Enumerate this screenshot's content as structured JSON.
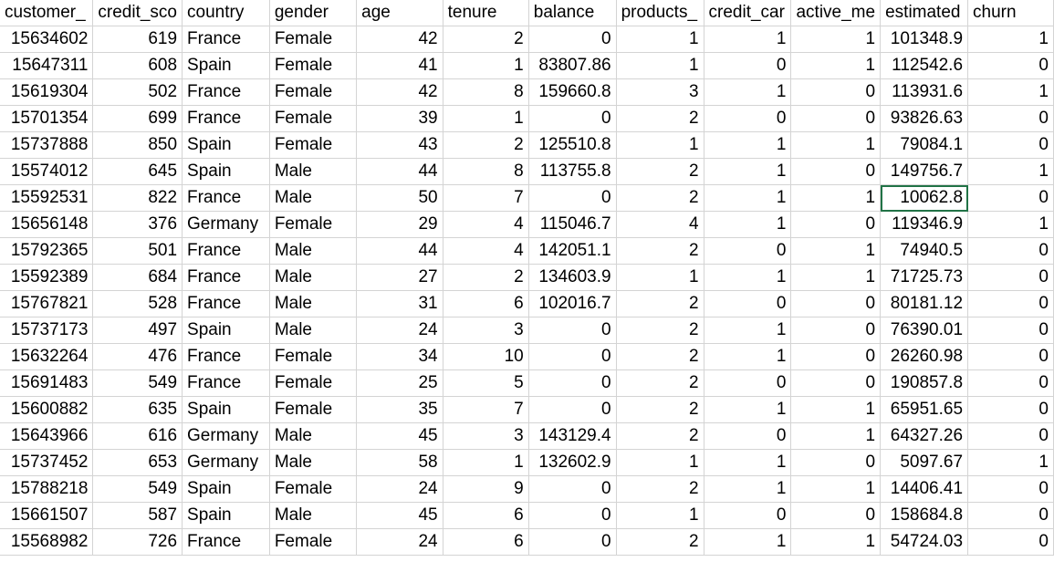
{
  "sheet": {
    "columns": [
      "customer_",
      "credit_sco",
      "country",
      "gender",
      "age",
      "tenure",
      "balance",
      "products_",
      "credit_car",
      "active_me",
      "estimated",
      "churn"
    ],
    "rows": [
      [
        "15634602",
        "619",
        "France",
        "Female",
        "42",
        "2",
        "0",
        "1",
        "1",
        "1",
        "101348.9",
        "1"
      ],
      [
        "15647311",
        "608",
        "Spain",
        "Female",
        "41",
        "1",
        "83807.86",
        "1",
        "0",
        "1",
        "112542.6",
        "0"
      ],
      [
        "15619304",
        "502",
        "France",
        "Female",
        "42",
        "8",
        "159660.8",
        "3",
        "1",
        "0",
        "113931.6",
        "1"
      ],
      [
        "15701354",
        "699",
        "France",
        "Female",
        "39",
        "1",
        "0",
        "2",
        "0",
        "0",
        "93826.63",
        "0"
      ],
      [
        "15737888",
        "850",
        "Spain",
        "Female",
        "43",
        "2",
        "125510.8",
        "1",
        "1",
        "1",
        "79084.1",
        "0"
      ],
      [
        "15574012",
        "645",
        "Spain",
        "Male",
        "44",
        "8",
        "113755.8",
        "2",
        "1",
        "0",
        "149756.7",
        "1"
      ],
      [
        "15592531",
        "822",
        "France",
        "Male",
        "50",
        "7",
        "0",
        "2",
        "1",
        "1",
        "10062.8",
        "0"
      ],
      [
        "15656148",
        "376",
        "Germany",
        "Female",
        "29",
        "4",
        "115046.7",
        "4",
        "1",
        "0",
        "119346.9",
        "1"
      ],
      [
        "15792365",
        "501",
        "France",
        "Male",
        "44",
        "4",
        "142051.1",
        "2",
        "0",
        "1",
        "74940.5",
        "0"
      ],
      [
        "15592389",
        "684",
        "France",
        "Male",
        "27",
        "2",
        "134603.9",
        "1",
        "1",
        "1",
        "71725.73",
        "0"
      ],
      [
        "15767821",
        "528",
        "France",
        "Male",
        "31",
        "6",
        "102016.7",
        "2",
        "0",
        "0",
        "80181.12",
        "0"
      ],
      [
        "15737173",
        "497",
        "Spain",
        "Male",
        "24",
        "3",
        "0",
        "2",
        "1",
        "0",
        "76390.01",
        "0"
      ],
      [
        "15632264",
        "476",
        "France",
        "Female",
        "34",
        "10",
        "0",
        "2",
        "1",
        "0",
        "26260.98",
        "0"
      ],
      [
        "15691483",
        "549",
        "France",
        "Female",
        "25",
        "5",
        "0",
        "2",
        "0",
        "0",
        "190857.8",
        "0"
      ],
      [
        "15600882",
        "635",
        "Spain",
        "Female",
        "35",
        "7",
        "0",
        "2",
        "1",
        "1",
        "65951.65",
        "0"
      ],
      [
        "15643966",
        "616",
        "Germany",
        "Male",
        "45",
        "3",
        "143129.4",
        "2",
        "0",
        "1",
        "64327.26",
        "0"
      ],
      [
        "15737452",
        "653",
        "Germany",
        "Male",
        "58",
        "1",
        "132602.9",
        "1",
        "1",
        "0",
        "5097.67",
        "1"
      ],
      [
        "15788218",
        "549",
        "Spain",
        "Female",
        "24",
        "9",
        "0",
        "2",
        "1",
        "1",
        "14406.41",
        "0"
      ],
      [
        "15661507",
        "587",
        "Spain",
        "Male",
        "45",
        "6",
        "0",
        "1",
        "0",
        "0",
        "158684.8",
        "0"
      ],
      [
        "15568982",
        "726",
        "France",
        "Female",
        "24",
        "6",
        "0",
        "2",
        "1",
        "1",
        "54724.03",
        "0"
      ]
    ],
    "grid_color": "#d4d4d4",
    "selection_color": "#217346"
  }
}
